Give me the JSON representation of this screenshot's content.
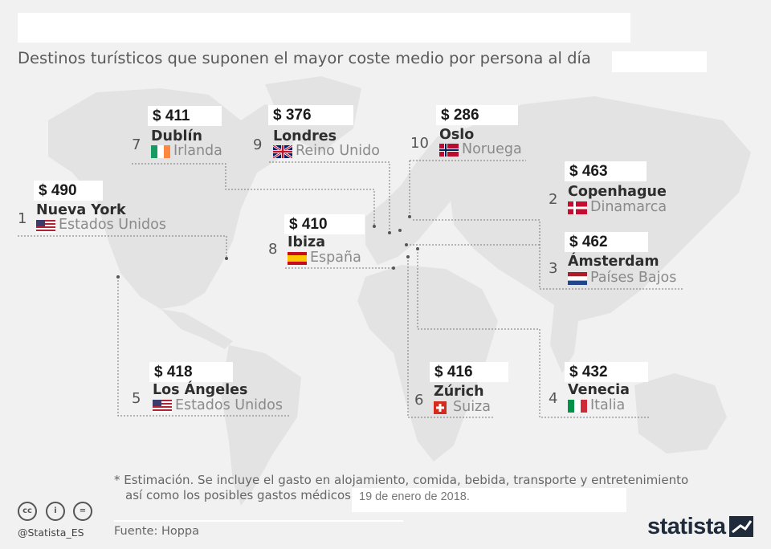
{
  "subtitle": "Destinos turísticos que suponen el mayor coste medio por persona al día",
  "chart_data": {
    "type": "map",
    "title": "Destinos turísticos que suponen el mayor coste medio por persona al día",
    "unit": "$",
    "points": [
      {
        "rank": "1",
        "price": "$ 490",
        "value": 490,
        "city": "Nueva York",
        "country": "Estados Unidos",
        "flag": "us-flag-icon"
      },
      {
        "rank": "2",
        "price": "$ 463",
        "value": 463,
        "city": "Copenhague",
        "country": "Dinamarca",
        "flag": "denmark-flag-icon"
      },
      {
        "rank": "3",
        "price": "$ 462",
        "value": 462,
        "city": "Ámsterdam",
        "country": "Países Bajos",
        "flag": "netherlands-flag-icon"
      },
      {
        "rank": "4",
        "price": "$ 432",
        "value": 432,
        "city": "Venecia",
        "country": "Italia",
        "flag": "italy-flag-icon"
      },
      {
        "rank": "5",
        "price": "$ 418",
        "value": 418,
        "city": "Los Ángeles",
        "country": "Estados Unidos",
        "flag": "us-flag-icon"
      },
      {
        "rank": "6",
        "price": "$ 416",
        "value": 416,
        "city": "Zúrich",
        "country": "Suiza",
        "flag": "switzerland-flag-icon"
      },
      {
        "rank": "7",
        "price": "$ 411",
        "value": 411,
        "city": "Dublín",
        "country": "Irlanda",
        "flag": "ireland-flag-icon"
      },
      {
        "rank": "8",
        "price": "$ 410",
        "value": 410,
        "city": "Ibiza",
        "country": "España",
        "flag": "spain-flag-icon"
      },
      {
        "rank": "9",
        "price": "$ 376",
        "value": 376,
        "city": "Londres",
        "country": "Reino Unido",
        "flag": "uk-flag-icon"
      },
      {
        "rank": "10",
        "price": "$ 286",
        "value": 286,
        "city": "Oslo",
        "country": "Noruega",
        "flag": "norway-flag-icon"
      }
    ]
  },
  "footnote": {
    "line1": "* Estimación. Se incluye el gasto en alojamiento, comida, bebida, transporte y entretenimiento",
    "line2": "así como los posibles gastos médicos."
  },
  "date": "19 de enero de 2018.",
  "source": "Fuente: Hoppa",
  "handle": "@Statista_ES",
  "logo": "statista"
}
